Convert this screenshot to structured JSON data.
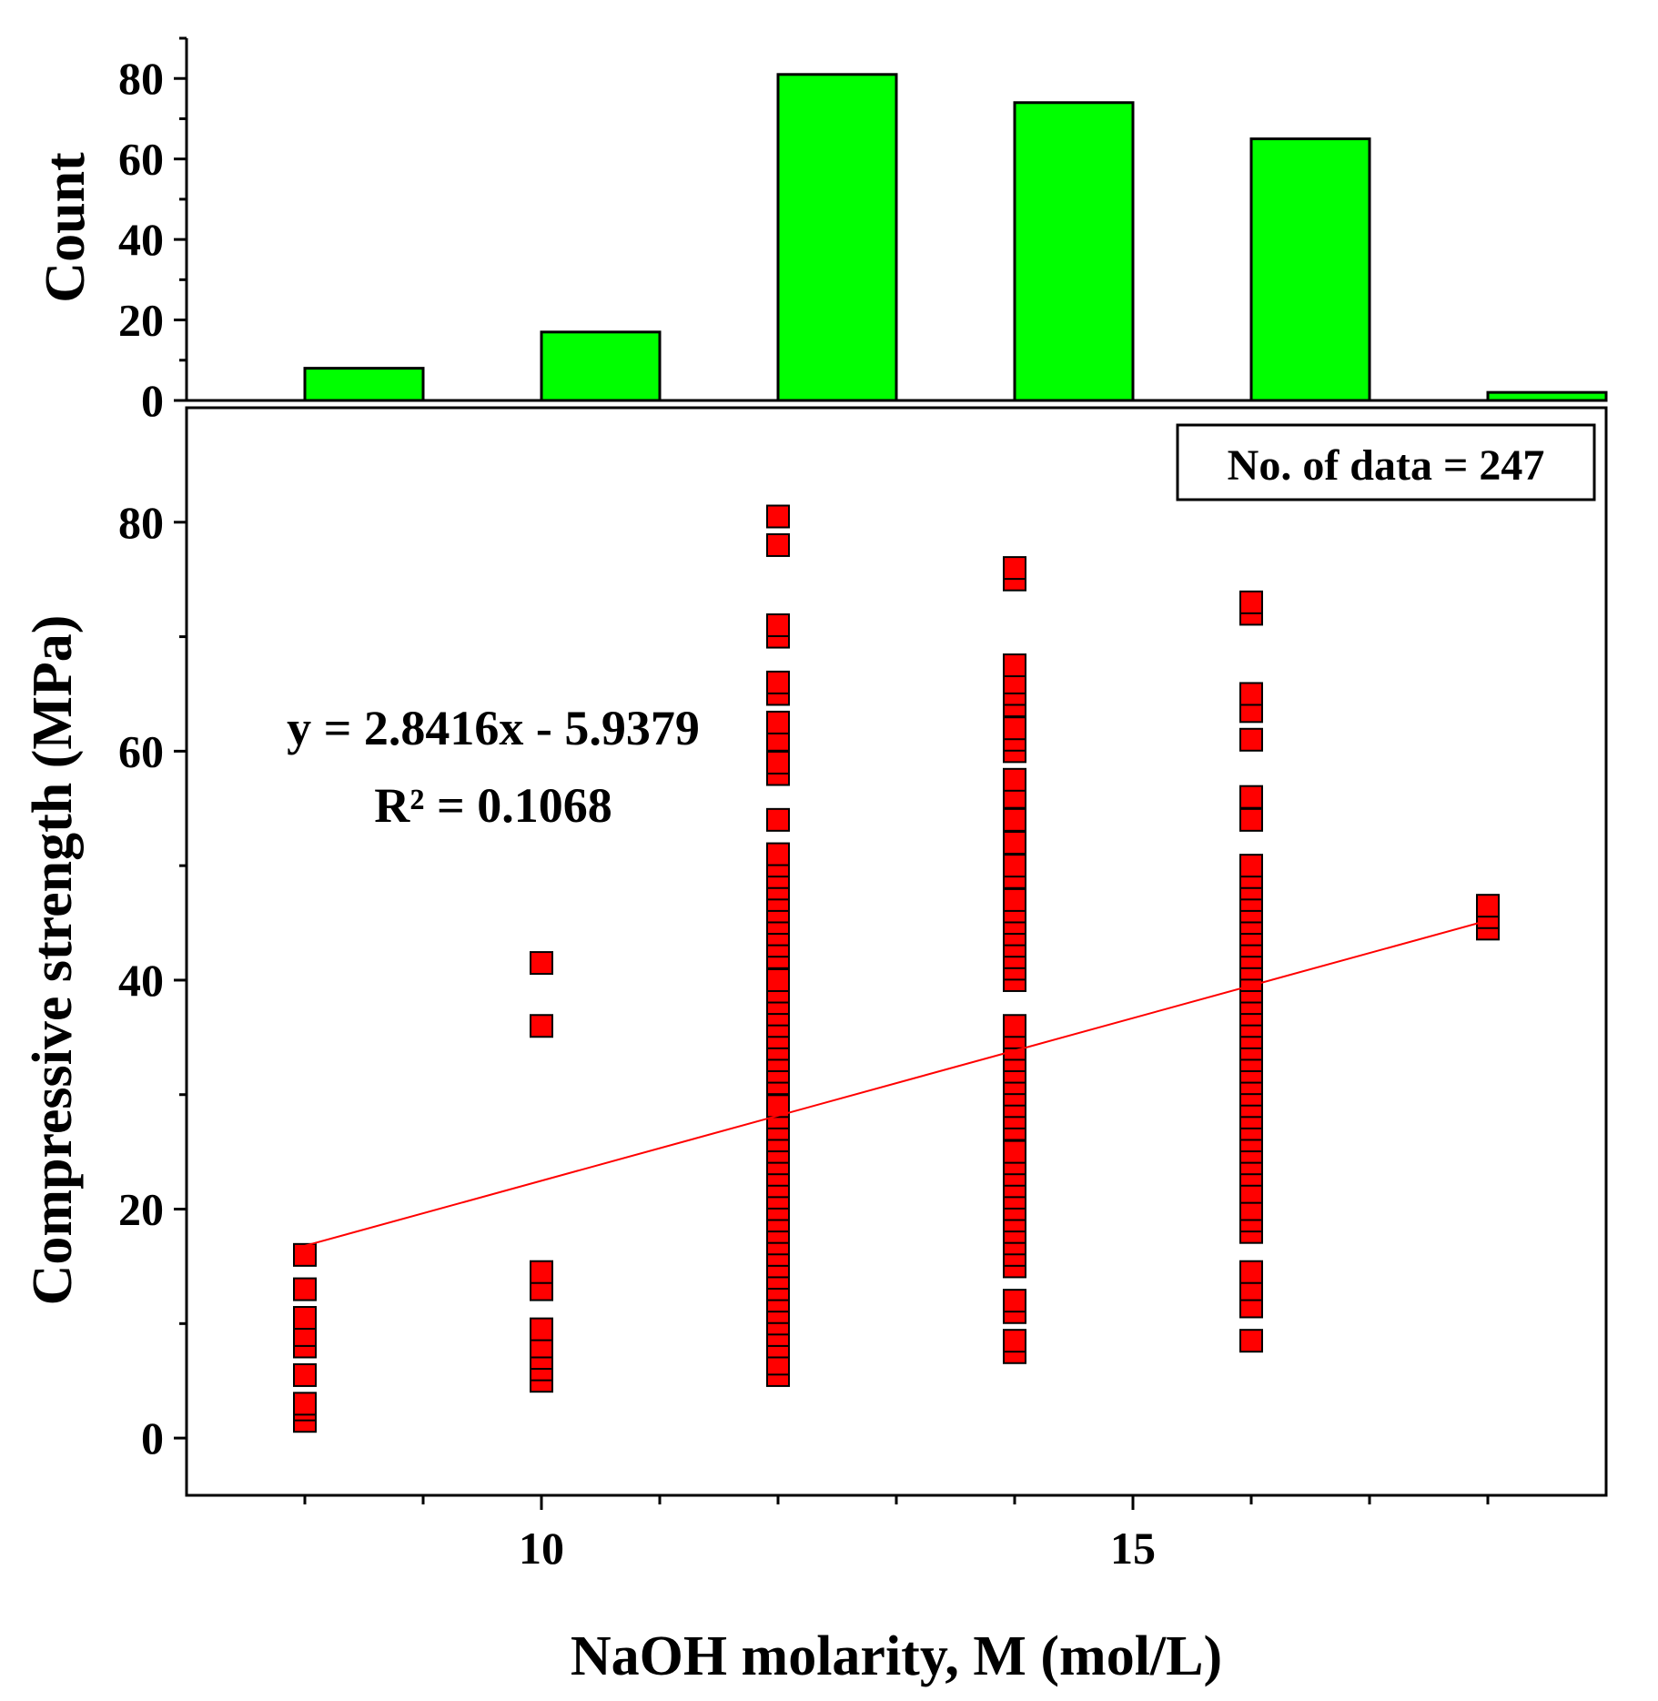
{
  "chart_data": {
    "type": "scatter",
    "title": "",
    "xlabel": "NaOH molarity, M (mol/L)",
    "x_ticks": [
      10,
      15
    ],
    "xlim": [
      7.0,
      19.0
    ],
    "histogram": {
      "type": "bar",
      "ylabel": "Count",
      "ylim": [
        0,
        90
      ],
      "y_ticks": [
        0,
        20,
        40,
        60,
        80
      ],
      "bins": [
        {
          "x": 8.5,
          "count": 8
        },
        {
          "x": 10.5,
          "count": 17
        },
        {
          "x": 12.5,
          "count": 81
        },
        {
          "x": 14.5,
          "count": 74
        },
        {
          "x": 16.5,
          "count": 65
        },
        {
          "x": 18.5,
          "count": 2
        }
      ],
      "bin_width": 1.0,
      "color": "#00ff00"
    },
    "scatter": {
      "ylabel": "Compressive strength (MPa)",
      "ylim": [
        -5,
        90
      ],
      "y_ticks": [
        0,
        20,
        40,
        60,
        80
      ],
      "color": "#ff0000",
      "series": [
        {
          "x": 8,
          "y": [
            1.5,
            2.5,
            3,
            5.5,
            8,
            9,
            10.5,
            13,
            16
          ]
        },
        {
          "x": 10,
          "y": [
            5,
            6,
            7,
            8,
            9.5,
            13,
            14.5,
            36,
            41.5
          ]
        },
        {
          "x": 12,
          "y": [
            5.5,
            6.5,
            8,
            9,
            10,
            11,
            12,
            13,
            14,
            15,
            16,
            17,
            18,
            19,
            20,
            21,
            22,
            23,
            24,
            25,
            26,
            27,
            28,
            29,
            31,
            32,
            33,
            34,
            35,
            36,
            37,
            38,
            39,
            40,
            42,
            43,
            44,
            45,
            46,
            47,
            48,
            49,
            50,
            51,
            54,
            58,
            59,
            61,
            62.5,
            65,
            66,
            70,
            71,
            78,
            80.5
          ]
        },
        {
          "x": 14,
          "y": [
            7.5,
            8.5,
            11,
            12,
            15,
            16,
            17,
            18,
            19,
            20,
            21,
            22,
            23,
            24,
            25,
            27,
            28,
            29,
            30,
            31,
            32,
            33,
            34,
            35,
            36,
            40,
            41,
            42,
            43,
            44,
            45,
            46,
            47,
            49,
            50,
            52,
            54,
            56,
            57.5,
            60,
            61,
            62,
            64,
            65,
            66,
            67.5,
            75,
            76
          ]
        },
        {
          "x": 16,
          "y": [
            8.5,
            11.5,
            13,
            14.5,
            18,
            19,
            20,
            21.5,
            23,
            24,
            25,
            26,
            27,
            28,
            29,
            30,
            31,
            32,
            33,
            34,
            35,
            36,
            37,
            38,
            39,
            40,
            41,
            42,
            43,
            44,
            45,
            46,
            47,
            48,
            49,
            50,
            54,
            56,
            61,
            63.5,
            65,
            72,
            73
          ]
        },
        {
          "x": 18,
          "y": [
            44.5,
            45.5,
            46.5
          ]
        }
      ],
      "fit": {
        "slope": 2.8416,
        "intercept": -5.9379,
        "x_range": [
          8,
          18
        ],
        "color": "#ff0000",
        "equation": "y = 2.8416x - 5.9379",
        "r2_label": "R² = 0.1068"
      },
      "annotation": "No. of data = 247"
    }
  }
}
